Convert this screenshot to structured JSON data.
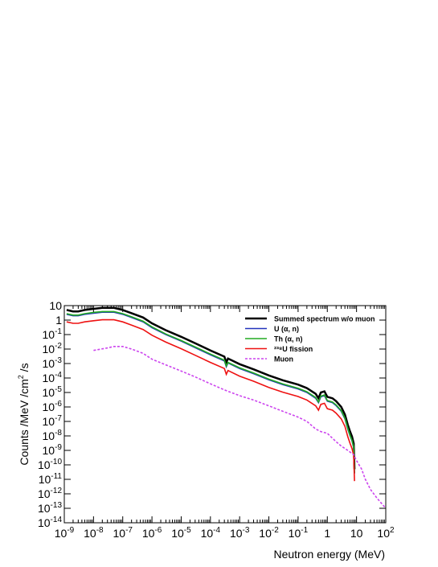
{
  "chart_data": {
    "type": "line",
    "title": "",
    "xlabel": "Neutron energy (MeV)",
    "ylabel_parts": [
      "Counts /MeV /cm",
      "2",
      " /s"
    ],
    "xscale": "log",
    "yscale": "log",
    "xlim": [
      1e-09,
      100
    ],
    "ylim": [
      1e-14,
      10
    ],
    "x_ticks": [
      {
        "base": "10",
        "exp": "-9"
      },
      {
        "base": "10",
        "exp": "-8"
      },
      {
        "base": "10",
        "exp": "-7"
      },
      {
        "base": "10",
        "exp": "-6"
      },
      {
        "base": "10",
        "exp": "-5"
      },
      {
        "base": "10",
        "exp": "-4"
      },
      {
        "base": "10",
        "exp": "-3"
      },
      {
        "base": "10",
        "exp": "-2"
      },
      {
        "base": "10",
        "exp": "-1"
      },
      {
        "base": "1",
        "exp": ""
      },
      {
        "base": "10",
        "exp": ""
      },
      {
        "base": "10",
        "exp": "2"
      }
    ],
    "y_ticks": [
      {
        "base": "10",
        "exp": ""
      },
      {
        "base": "1",
        "exp": ""
      },
      {
        "base": "10",
        "exp": "-1"
      },
      {
        "base": "10",
        "exp": "-2"
      },
      {
        "base": "10",
        "exp": "-3"
      },
      {
        "base": "10",
        "exp": "-4"
      },
      {
        "base": "10",
        "exp": "-5"
      },
      {
        "base": "10",
        "exp": "-6"
      },
      {
        "base": "10",
        "exp": "-7"
      },
      {
        "base": "10",
        "exp": "-8"
      },
      {
        "base": "10",
        "exp": "-9"
      },
      {
        "base": "10",
        "exp": "-10"
      },
      {
        "base": "10",
        "exp": "-11"
      },
      {
        "base": "10",
        "exp": "-12"
      },
      {
        "base": "10",
        "exp": "-13"
      },
      {
        "base": "10",
        "exp": "-14"
      }
    ],
    "legend_position": "top-right",
    "series": [
      {
        "name": "Summed spectrum w/o muon",
        "color": "#000000",
        "dash": "solid",
        "x": [
          1.2e-09,
          2e-09,
          3e-09,
          5e-09,
          1e-08,
          2e-08,
          3e-08,
          5e-08,
          1e-07,
          2e-07,
          5e-07,
          1e-06,
          3e-06,
          1e-05,
          3e-05,
          0.0001,
          0.0003,
          0.00035,
          0.0004,
          0.001,
          0.003,
          0.01,
          0.03,
          0.1,
          0.2,
          0.4,
          0.5,
          0.6,
          0.8,
          1,
          1.5,
          2,
          3,
          4,
          5,
          6,
          7,
          8,
          8.5
        ],
        "y": [
          5,
          4,
          4,
          5,
          6,
          7,
          7,
          7,
          5,
          3,
          1.5,
          0.6,
          0.2,
          0.07,
          0.025,
          0.008,
          0.003,
          0.0012,
          0.0022,
          0.0009,
          0.0004,
          0.00015,
          7e-05,
          3.5e-05,
          2e-05,
          8e-06,
          4e-06,
          1e-05,
          1.2e-05,
          5e-06,
          4e-06,
          2.5e-06,
          1e-06,
          3e-07,
          6e-08,
          2e-08,
          9e-09,
          3e-09,
          5e-11
        ]
      },
      {
        "name": "U (α, n)",
        "color": "#2233bb",
        "dash": "solid",
        "x": [
          1.2e-09,
          2e-09,
          3e-09,
          5e-09,
          1e-08,
          2e-08,
          3e-08,
          5e-08,
          1e-07,
          2e-07,
          5e-07,
          1e-06,
          3e-06,
          1e-05,
          3e-05,
          0.0001,
          0.0003,
          0.00035,
          0.0004,
          0.001,
          0.003,
          0.01,
          0.03,
          0.1,
          0.2,
          0.4,
          0.5,
          0.6,
          0.8,
          1,
          1.5,
          2,
          3,
          4,
          5,
          6,
          7,
          8,
          8.5
        ],
        "y": [
          2.5,
          2,
          2,
          2.5,
          3,
          3.5,
          3.5,
          3.5,
          2.5,
          1.5,
          0.75,
          0.3,
          0.1,
          0.035,
          0.0125,
          0.004,
          0.0015,
          0.0006,
          0.0011,
          0.00045,
          0.0002,
          7.5e-05,
          3.5e-05,
          1.75e-05,
          1e-05,
          4e-06,
          2e-06,
          5e-06,
          6e-06,
          2.5e-06,
          2e-06,
          1.25e-06,
          5e-07,
          1.5e-07,
          3e-08,
          1e-08,
          4.5e-09,
          1.5e-09,
          2.5e-11
        ]
      },
      {
        "name": "Th (α, n)",
        "color": "#22aa22",
        "dash": "solid",
        "x": [
          1.2e-09,
          2e-09,
          3e-09,
          5e-09,
          1e-08,
          2e-08,
          3e-08,
          5e-08,
          1e-07,
          2e-07,
          5e-07,
          1e-06,
          3e-06,
          1e-05,
          3e-05,
          0.0001,
          0.0003,
          0.00035,
          0.0004,
          0.001,
          0.003,
          0.01,
          0.03,
          0.1,
          0.2,
          0.4,
          0.5,
          0.6,
          0.8,
          1,
          1.5,
          2,
          3,
          4,
          5,
          6,
          7,
          8,
          8.5
        ],
        "y": [
          2.8,
          2.2,
          2.2,
          2.8,
          3.4,
          3.9,
          3.9,
          3.9,
          2.8,
          1.7,
          0.84,
          0.34,
          0.11,
          0.039,
          0.014,
          0.0045,
          0.0017,
          0.00067,
          0.0012,
          0.0005,
          0.00022,
          8.4e-05,
          3.9e-05,
          1.96e-05,
          1.12e-05,
          4.5e-06,
          2.2e-06,
          5.6e-06,
          6.7e-06,
          2.8e-06,
          2.2e-06,
          1.4e-06,
          5.6e-07,
          1.7e-07,
          3.4e-08,
          1.1e-08,
          5e-09,
          1.7e-09,
          2.8e-11
        ]
      },
      {
        "name": "²³⁸U fission",
        "color": "#ee1111",
        "dash": "solid",
        "x": [
          1.2e-09,
          2e-09,
          3e-09,
          5e-09,
          1e-08,
          2e-08,
          3e-08,
          5e-08,
          1e-07,
          2e-07,
          5e-07,
          1e-06,
          3e-06,
          1e-05,
          3e-05,
          0.0001,
          0.0003,
          0.00035,
          0.0004,
          0.001,
          0.003,
          0.01,
          0.03,
          0.1,
          0.2,
          0.4,
          0.5,
          0.6,
          0.8,
          1,
          1.5,
          2,
          3,
          4,
          5,
          6,
          7,
          8,
          8.5
        ],
        "y": [
          0.75,
          0.6,
          0.6,
          0.75,
          0.9,
          1.05,
          1.05,
          1.05,
          0.75,
          0.45,
          0.225,
          0.09,
          0.03,
          0.0105,
          0.00375,
          0.0012,
          0.00045,
          0.00018,
          0.00033,
          0.000135,
          6e-05,
          2.25e-05,
          1.05e-05,
          5.25e-06,
          3e-06,
          1.2e-06,
          6e-07,
          1.5e-06,
          1.8e-06,
          7.5e-07,
          6e-07,
          3.75e-07,
          1.5e-07,
          4.5e-08,
          9e-09,
          3e-09,
          1.35e-09,
          4.5e-10,
          7.5e-12
        ]
      },
      {
        "name": "Muon",
        "color": "#cc44ee",
        "dash": "dashed",
        "x": [
          1e-08,
          3e-08,
          5e-08,
          1e-07,
          2e-07,
          5e-07,
          1e-06,
          3e-06,
          1e-05,
          3e-05,
          0.0001,
          0.0003,
          0.001,
          0.003,
          0.01,
          0.03,
          0.1,
          0.2,
          0.4,
          0.6,
          1,
          2,
          3,
          5,
          8,
          10,
          15,
          20,
          30,
          50,
          100
        ],
        "y": [
          0.008,
          0.012,
          0.015,
          0.015,
          0.01,
          0.005,
          0.002,
          0.0008,
          0.0003,
          0.00012,
          4e-05,
          1.5e-05,
          6e-06,
          3e-06,
          1.2e-06,
          5e-07,
          2e-07,
          1e-07,
          3e-08,
          2e-08,
          1.5e-08,
          4e-09,
          2e-09,
          1e-09,
          5e-10,
          2e-10,
          5e-11,
          1e-11,
          2e-12,
          5e-13,
          1e-13
        ]
      }
    ]
  }
}
